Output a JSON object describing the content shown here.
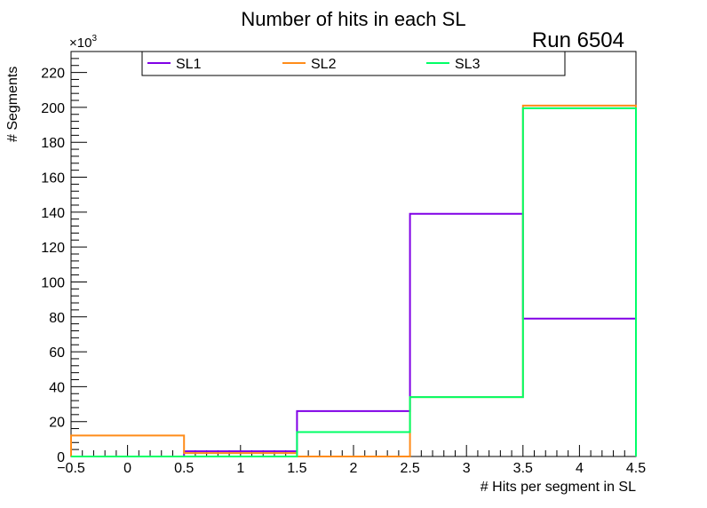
{
  "chart_data": {
    "type": "histogram-step",
    "title": "Number of hits in each SL",
    "annotation": "Run 6504",
    "xlabel": "# Hits per segment in SL",
    "ylabel": "# Segments",
    "y_multiplier_label": "×10",
    "y_multiplier_exp": "3",
    "xlim": [
      -0.5,
      4.5
    ],
    "ylim": [
      0,
      232
    ],
    "x_ticks": [
      -0.5,
      0,
      0.5,
      1,
      1.5,
      2,
      2.5,
      3,
      3.5,
      4,
      4.5
    ],
    "x_tick_labels": [
      "−0.5",
      "0",
      "0.5",
      "1",
      "1.5",
      "2",
      "2.5",
      "3",
      "3.5",
      "4",
      "4.5"
    ],
    "y_ticks": [
      0,
      20,
      40,
      60,
      80,
      100,
      120,
      140,
      160,
      180,
      200,
      220
    ],
    "y_tick_labels": [
      "0",
      "20",
      "40",
      "60",
      "80",
      "100",
      "120",
      "140",
      "160",
      "180",
      "200",
      "220"
    ],
    "bin_edges": [
      -0.5,
      0.5,
      1.5,
      2.5,
      3.5,
      4.5
    ],
    "series": [
      {
        "name": "SL1",
        "color": "#8000e6",
        "values": [
          0,
          3,
          26,
          139,
          79
        ]
      },
      {
        "name": "SL2",
        "color": "#ff8c1a",
        "values": [
          12,
          2,
          0,
          34,
          201
        ]
      },
      {
        "name": "SL3",
        "color": "#00ff66",
        "values": [
          0,
          0,
          14,
          34,
          199.5
        ]
      }
    ]
  }
}
